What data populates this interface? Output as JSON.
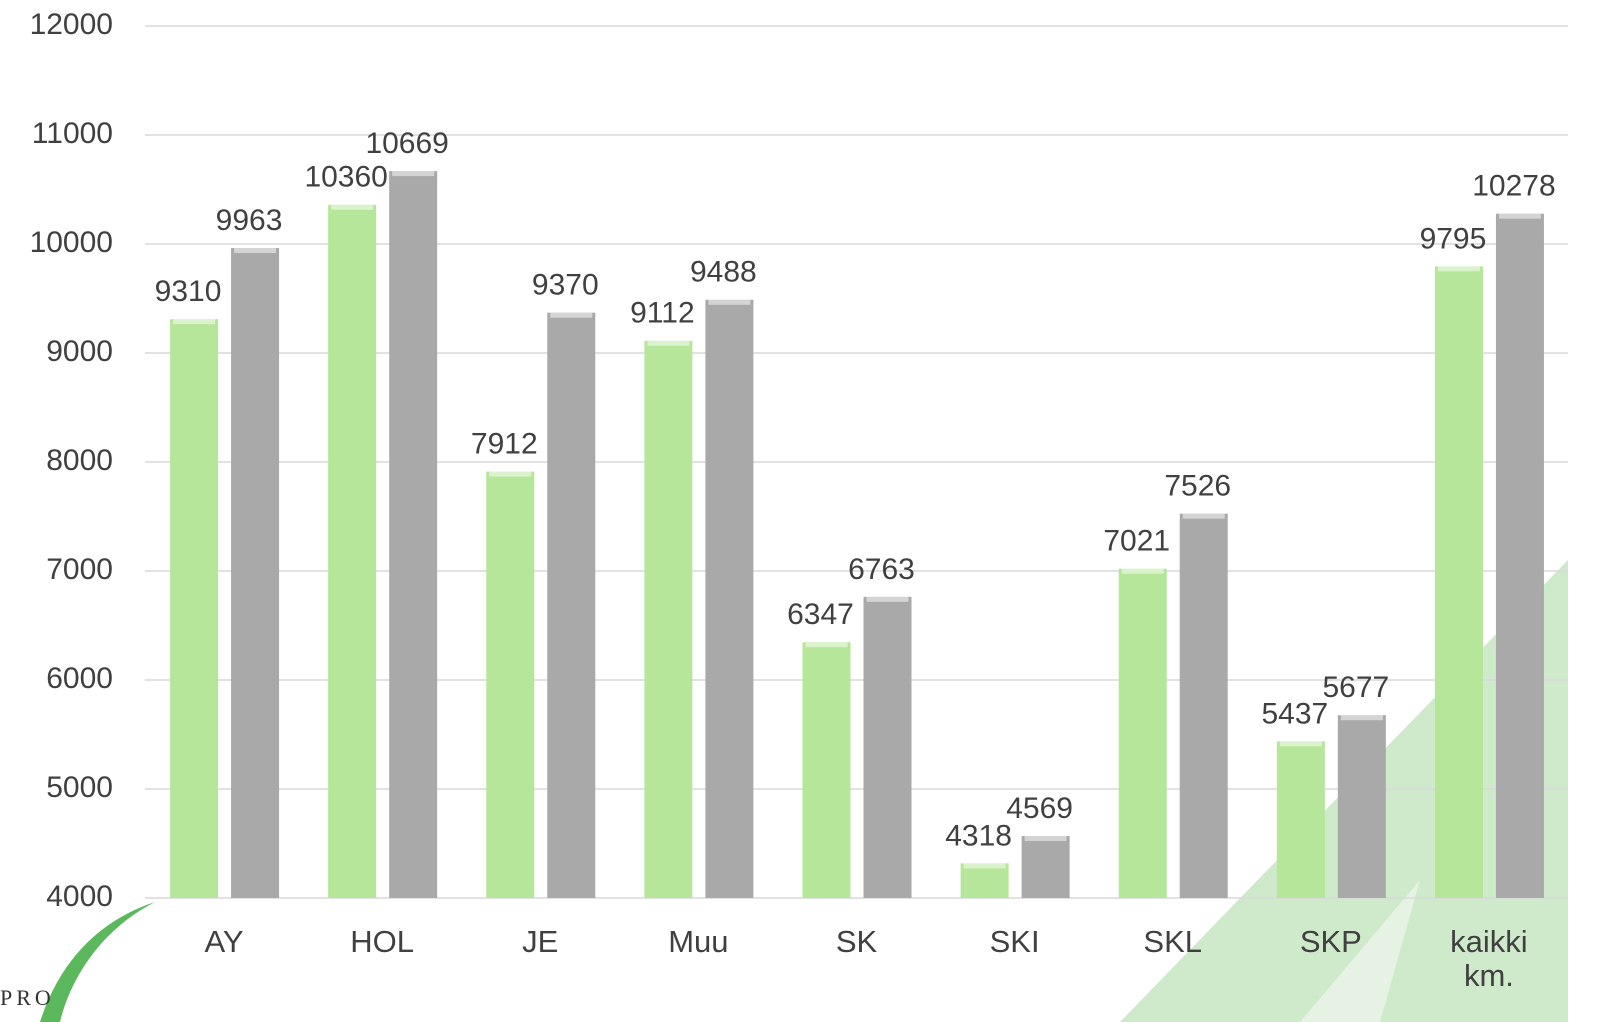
{
  "chart_data": {
    "type": "bar",
    "categories": [
      "AY",
      "HOL",
      "JE",
      "Muu",
      "SK",
      "SKI",
      "SKL",
      "SKP",
      "kaikki km."
    ],
    "series": [
      {
        "color": "#b5e69a",
        "values": [
          9310,
          10360,
          7912,
          9112,
          6347,
          4318,
          7021,
          5437,
          9795
        ]
      },
      {
        "color": "#a9a9a9",
        "values": [
          9963,
          10669,
          9370,
          9488,
          6763,
          4569,
          7526,
          5677,
          10278
        ]
      }
    ],
    "ylim": [
      4000,
      12000
    ],
    "yticks": [
      4000,
      5000,
      6000,
      7000,
      8000,
      9000,
      10000,
      11000,
      12000
    ],
    "grid": true,
    "logo_text": "PRO"
  }
}
